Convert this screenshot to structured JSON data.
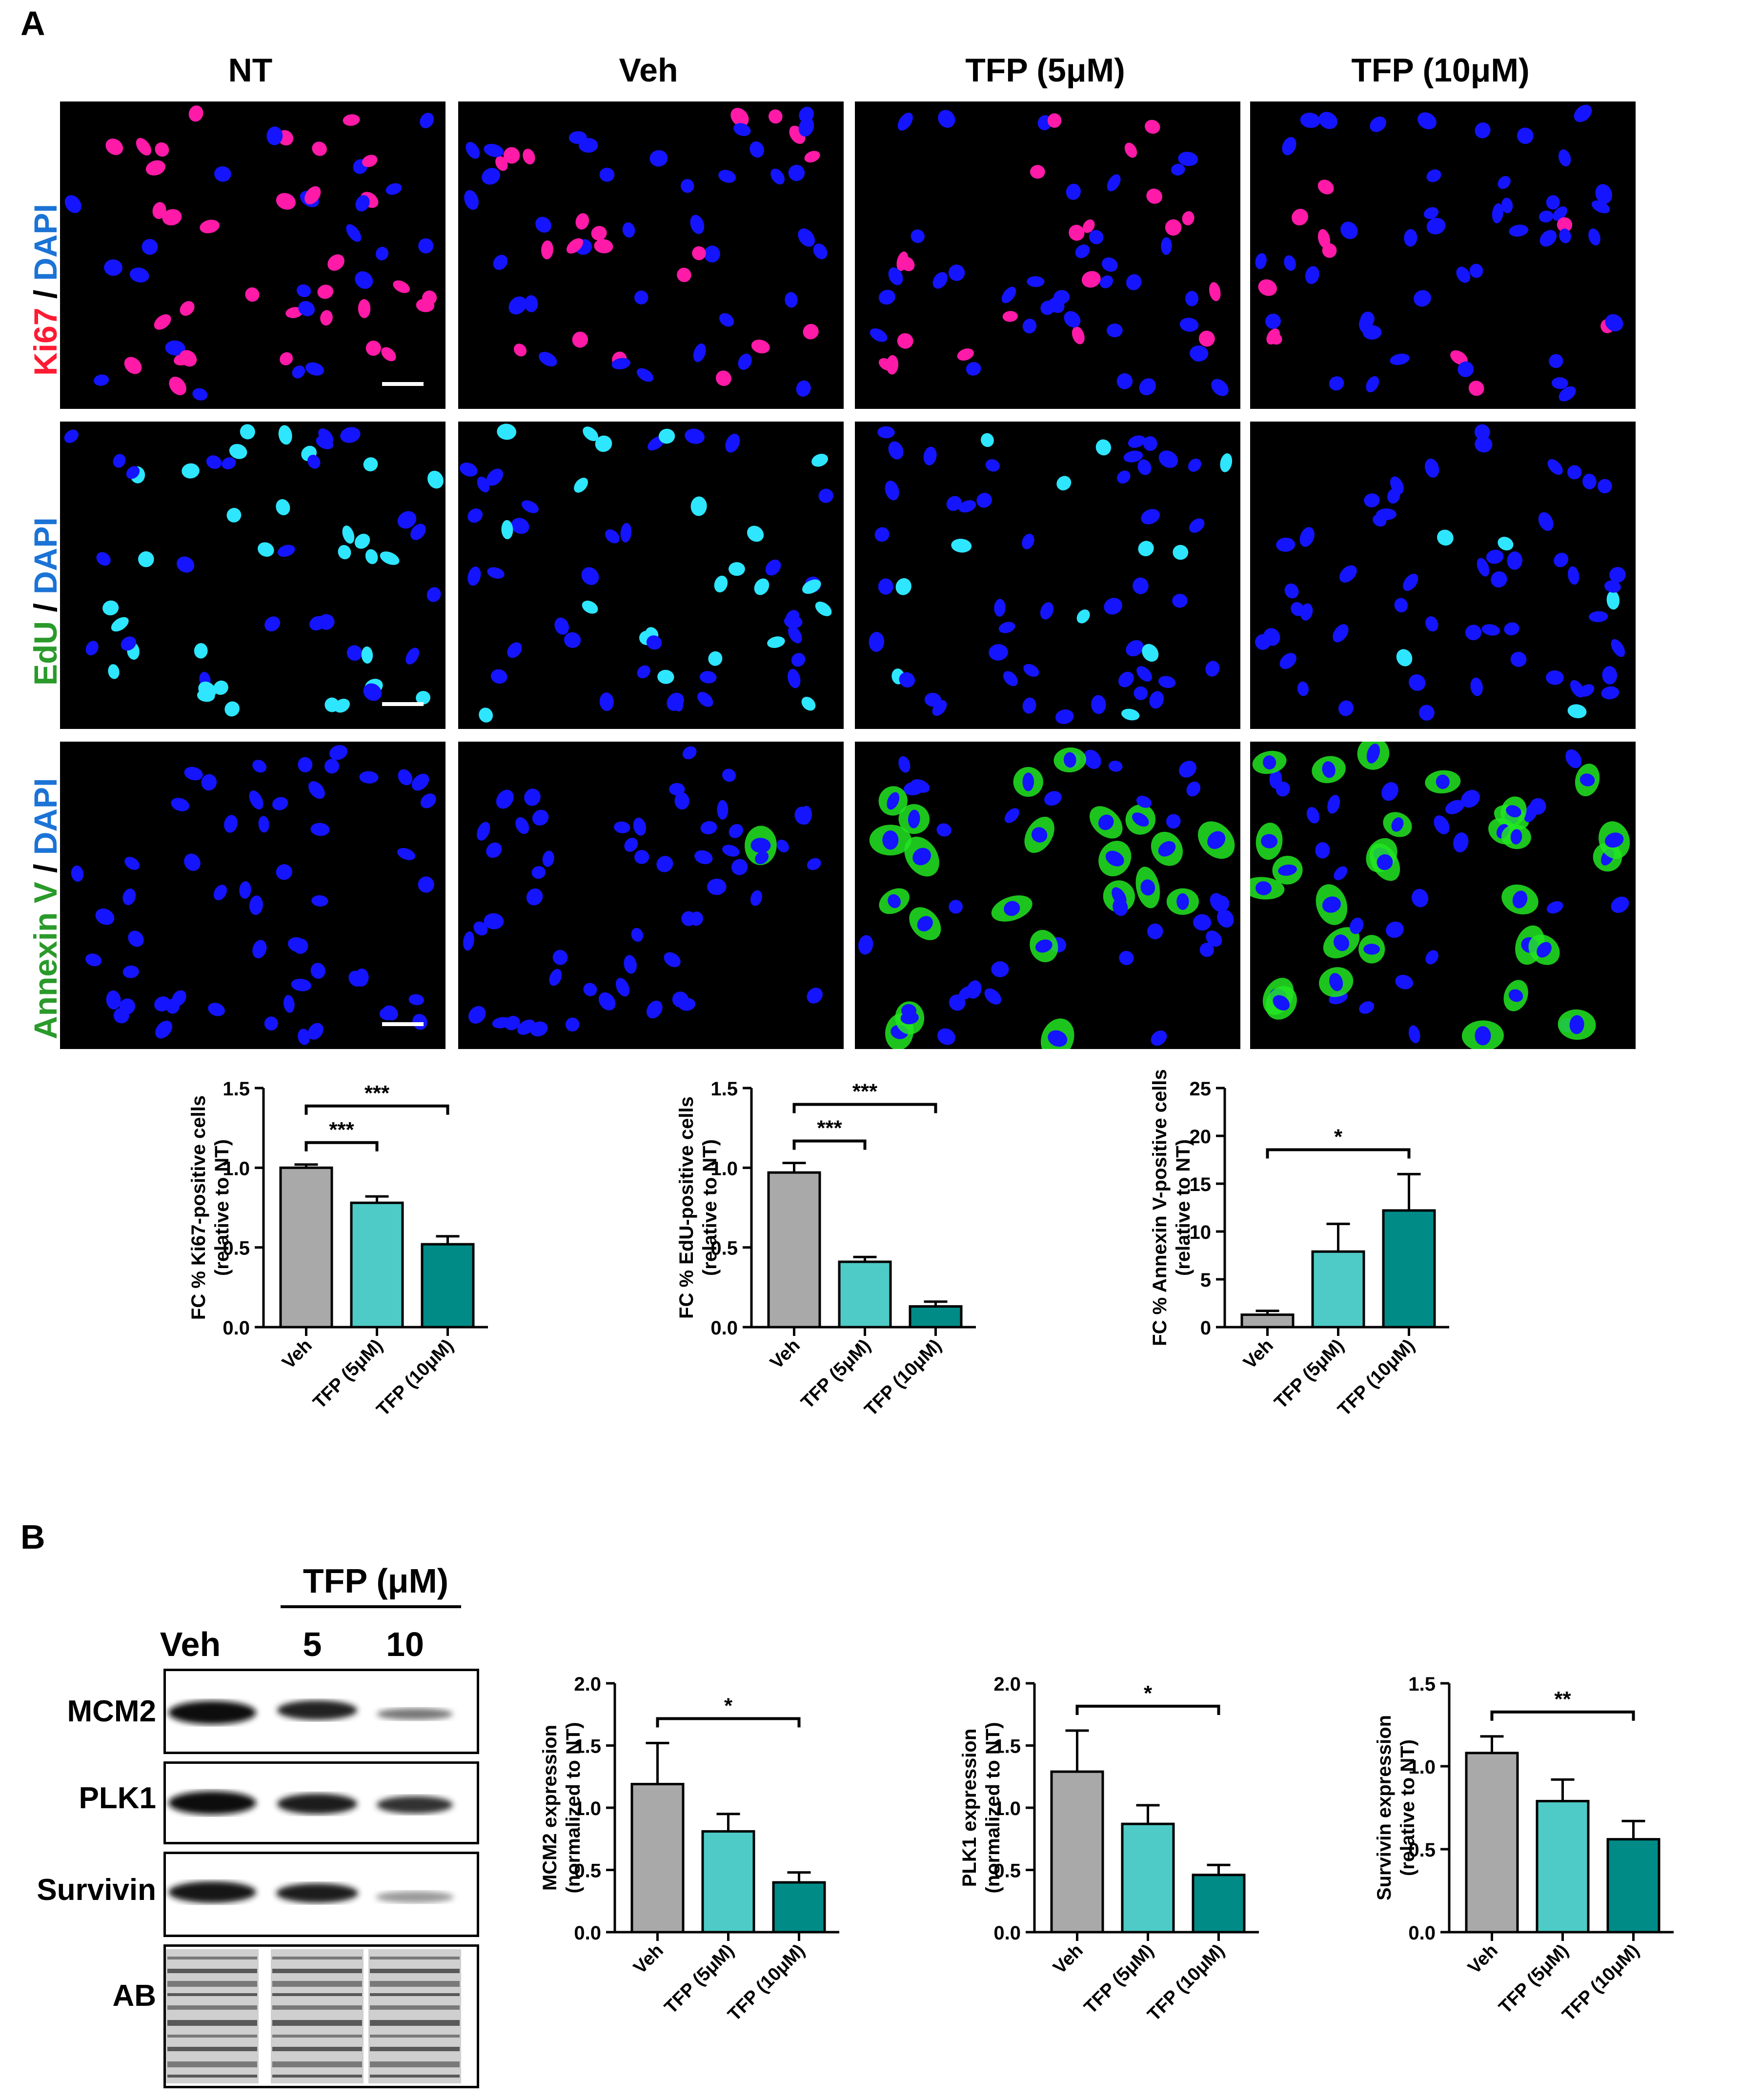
{
  "panel_a": {
    "letter": "A",
    "columns": [
      "NT",
      "Veh",
      "TFP (5μM)",
      "TFP (10μM)"
    ],
    "rows": [
      {
        "marker": "Ki67",
        "sep": " / ",
        "counter": "DAPI",
        "marker_color": "#ff1a33"
      },
      {
        "marker": "EdU",
        "sep": " / ",
        "counter": "DAPI",
        "marker_color": "#2a9a2a"
      },
      {
        "marker": "Annexin V",
        "sep": " / ",
        "counter": "DAPI",
        "marker_color": "#2a9a2a"
      }
    ]
  },
  "panel_b": {
    "letter": "B",
    "wb": {
      "group_label": "TFP (μM)",
      "lanes": [
        "Veh",
        "5",
        "10"
      ],
      "rows": [
        "MCM2",
        "PLK1",
        "Survivin",
        "AB"
      ]
    }
  },
  "colors": {
    "veh": "#a9a9a9",
    "tfp5": "#4ecbc6",
    "tfp10": "#008b87",
    "dapi": "#1414ff",
    "ki67": "#ff1aa8",
    "edu": "#2ee6ff",
    "annexin": "#22e622"
  },
  "chart_data": [
    {
      "type": "bar",
      "categories": [
        "Veh",
        "TFP (5μM)",
        "TFP (10μM)"
      ],
      "values": [
        1.0,
        0.78,
        0.52
      ],
      "errors": [
        0.02,
        0.04,
        0.05
      ],
      "ylabel": "FC % Ki67-positive cells",
      "ylabel2": "(relative to NT)",
      "ylim": [
        0,
        1.5
      ],
      "yticks": [
        "0.0",
        "0.5",
        "1.0",
        "1.5"
      ],
      "sig": [
        {
          "from": 0,
          "to": 1,
          "label": "***"
        },
        {
          "from": 0,
          "to": 2,
          "label": "***"
        }
      ]
    },
    {
      "type": "bar",
      "categories": [
        "Veh",
        "TFP (5μM)",
        "TFP (10μM)"
      ],
      "values": [
        0.97,
        0.41,
        0.13
      ],
      "errors": [
        0.06,
        0.03,
        0.03
      ],
      "ylabel": "FC % EdU-positive cells",
      "ylabel2": "(relative to NT)",
      "ylim": [
        0,
        1.5
      ],
      "yticks": [
        "0.0",
        "0.5",
        "1.0",
        "1.5"
      ],
      "sig": [
        {
          "from": 0,
          "to": 1,
          "label": "***"
        },
        {
          "from": 0,
          "to": 2,
          "label": "***"
        }
      ]
    },
    {
      "type": "bar",
      "categories": [
        "Veh",
        "TFP (5μM)",
        "TFP (10μM)"
      ],
      "values": [
        1.3,
        7.9,
        12.2
      ],
      "errors": [
        0.4,
        2.9,
        3.8
      ],
      "ylabel": "FC % Annexin V-positive cells",
      "ylabel2": "(relative to NT)",
      "ylim": [
        0,
        25
      ],
      "yticks": [
        "0",
        "5",
        "10",
        "15",
        "20",
        "25"
      ],
      "sig": [
        {
          "from": 0,
          "to": 2,
          "label": "*"
        }
      ]
    },
    {
      "type": "bar",
      "categories": [
        "Veh",
        "TFP (5μM)",
        "TFP (10μM)"
      ],
      "values": [
        1.19,
        0.81,
        0.4
      ],
      "errors": [
        0.33,
        0.14,
        0.08
      ],
      "ylabel": "MCM2 expression",
      "ylabel2": "(normalized to NT)",
      "ylim": [
        0,
        2.0
      ],
      "yticks": [
        "0.0",
        "0.5",
        "1.0",
        "1.5",
        "2.0"
      ],
      "sig": [
        {
          "from": 0,
          "to": 2,
          "label": "*"
        }
      ]
    },
    {
      "type": "bar",
      "categories": [
        "Veh",
        "TFP (5μM)",
        "TFP (10μM)"
      ],
      "values": [
        1.29,
        0.87,
        0.46
      ],
      "errors": [
        0.33,
        0.15,
        0.08
      ],
      "ylabel": "PLK1 expression",
      "ylabel2": "(normalized to NT)",
      "ylim": [
        0,
        2.0
      ],
      "yticks": [
        "0.0",
        "0.5",
        "1.0",
        "1.5",
        "2.0"
      ],
      "sig": [
        {
          "from": 0,
          "to": 2,
          "label": "*"
        }
      ]
    },
    {
      "type": "bar",
      "categories": [
        "Veh",
        "TFP (5μM)",
        "TFP (10μM)"
      ],
      "values": [
        1.08,
        0.79,
        0.56
      ],
      "errors": [
        0.1,
        0.13,
        0.11
      ],
      "ylabel": "Survivin expression",
      "ylabel2": "(relative to NT)",
      "ylim": [
        0,
        1.5
      ],
      "yticks": [
        "0.0",
        "0.5",
        "1.0",
        "1.5"
      ],
      "sig": [
        {
          "from": 0,
          "to": 2,
          "label": "**"
        }
      ]
    }
  ]
}
